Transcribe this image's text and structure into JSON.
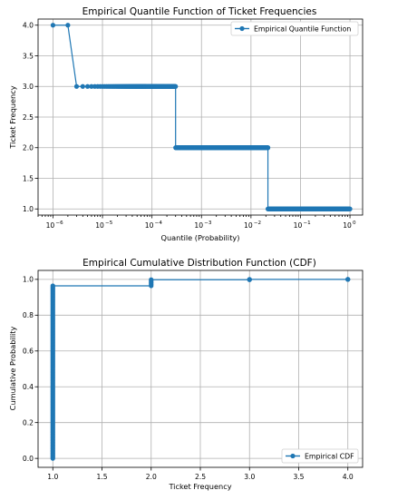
{
  "charts": [
    {
      "type": "line",
      "title": "Empirical Quantile Function of Ticket Frequencies",
      "xlabel": "Quantile (Probability)",
      "ylabel": "Ticket Frequency",
      "xscale": "log",
      "xlim": [
        5e-07,
        1.8
      ],
      "ylim": [
        0.9,
        4.1
      ],
      "grid": true,
      "legend": {
        "placement": "top-right",
        "label": "Empirical Quantile Function"
      },
      "color": "#1f77b4",
      "xticks": [
        {
          "value": 1e-06,
          "base": "10",
          "exp": "−6"
        },
        {
          "value": 1e-05,
          "base": "10",
          "exp": "−5"
        },
        {
          "value": 0.0001,
          "base": "10",
          "exp": "−4"
        },
        {
          "value": 0.001,
          "base": "10",
          "exp": "−3"
        },
        {
          "value": 0.01,
          "base": "10",
          "exp": "−2"
        },
        {
          "value": 0.1,
          "base": "10",
          "exp": "−1"
        },
        {
          "value": 1,
          "base": "10",
          "exp": "0"
        }
      ],
      "yticks": [
        {
          "value": 1.0,
          "label": "1.0"
        },
        {
          "value": 1.5,
          "label": "1.5"
        },
        {
          "value": 2.0,
          "label": "2.0"
        },
        {
          "value": 2.5,
          "label": "2.5"
        },
        {
          "value": 3.0,
          "label": "3.0"
        },
        {
          "value": 3.5,
          "label": "3.5"
        },
        {
          "value": 4.0,
          "label": "4.0"
        }
      ],
      "series": [
        {
          "segments": [
            {
              "value": 4,
              "x_start": 1e-06,
              "x_end": 2e-06
            },
            {
              "value": 3,
              "x_start": 3e-06,
              "x_end": 0.0003
            },
            {
              "value": 2,
              "x_start": 0.0003,
              "x_end": 0.022
            },
            {
              "value": 1,
              "x_start": 0.022,
              "x_end": 1.0
            }
          ]
        }
      ]
    },
    {
      "type": "line",
      "title": "Empirical Cumulative Distribution Function (CDF)",
      "xlabel": "Ticket Frequency",
      "ylabel": "Cumulative Probability",
      "xlim": [
        0.85,
        4.15
      ],
      "ylim": [
        -0.05,
        1.05
      ],
      "grid": true,
      "legend": {
        "placement": "bottom-right",
        "label": "Empirical CDF"
      },
      "color": "#1f77b4",
      "xticks": [
        {
          "value": 1.0,
          "label": "1.0"
        },
        {
          "value": 1.5,
          "label": "1.5"
        },
        {
          "value": 2.0,
          "label": "2.0"
        },
        {
          "value": 2.5,
          "label": "2.5"
        },
        {
          "value": 3.0,
          "label": "3.0"
        },
        {
          "value": 3.5,
          "label": "3.5"
        },
        {
          "value": 4.0,
          "label": "4.0"
        }
      ],
      "yticks": [
        {
          "value": 0.0,
          "label": "0.0"
        },
        {
          "value": 0.2,
          "label": "0.2"
        },
        {
          "value": 0.4,
          "label": "0.4"
        },
        {
          "value": 0.6,
          "label": "0.6"
        },
        {
          "value": 0.8,
          "label": "0.8"
        },
        {
          "value": 1.0,
          "label": "1.0"
        }
      ],
      "series": [
        {
          "points": [
            {
              "x": 1,
              "y_start": 0.0,
              "y_end": 0.964
            },
            {
              "x": 2,
              "y_start": 0.964,
              "y_end": 0.998
            },
            {
              "x": 3,
              "y_start": 0.998,
              "y_end": 0.9999
            },
            {
              "x": 4,
              "y_start": 1.0,
              "y_end": 1.0
            }
          ]
        }
      ]
    }
  ]
}
